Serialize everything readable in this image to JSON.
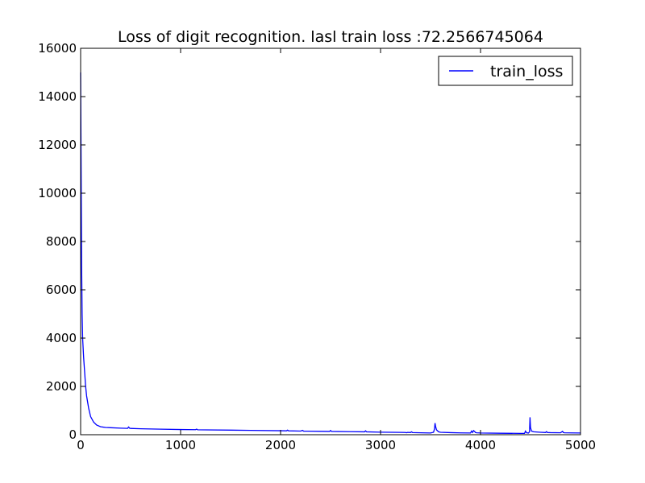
{
  "chart_data": {
    "type": "line",
    "title": "Loss of digit recognition. lasl train loss :72.2566745064",
    "xlabel": "",
    "ylabel": "",
    "xlim": [
      0,
      5000
    ],
    "ylim": [
      0,
      16000
    ],
    "x_ticks": [
      0,
      1000,
      2000,
      3000,
      4000,
      5000
    ],
    "y_ticks": [
      0,
      2000,
      4000,
      6000,
      8000,
      10000,
      12000,
      14000,
      16000
    ],
    "x_tick_labels": [
      "0",
      "1000",
      "2000",
      "3000",
      "4000",
      "5000"
    ],
    "y_tick_labels": [
      "0",
      "2000",
      "4000",
      "6000",
      "8000",
      "10000",
      "12000",
      "14000",
      "16000"
    ],
    "grid": false,
    "legend_position": "top-right",
    "series": [
      {
        "name": "train_loss",
        "color": "#0000ff",
        "x": [
          0,
          5,
          10,
          15,
          20,
          30,
          40,
          50,
          60,
          80,
          100,
          130,
          160,
          200,
          250,
          300,
          400,
          470,
          480,
          490,
          500,
          600,
          800,
          1000,
          1150,
          1160,
          1170,
          1250,
          1500,
          1700,
          2000,
          2060,
          2070,
          2080,
          2200,
          2220,
          2230,
          2400,
          2490,
          2500,
          2510,
          2700,
          2840,
          2850,
          2860,
          3000,
          3200,
          3250,
          3260,
          3270,
          3300,
          3310,
          3320,
          3400,
          3500,
          3530,
          3540,
          3545,
          3550,
          3560,
          3580,
          3600,
          3700,
          3800,
          3900,
          3910,
          3920,
          3930,
          3940,
          3950,
          3960,
          4000,
          4200,
          4400,
          4440,
          4450,
          4460,
          4480,
          4490,
          4495,
          4500,
          4510,
          4530,
          4600,
          4650,
          4660,
          4670,
          4700,
          4800,
          4820,
          4830,
          4840,
          4900,
          5000
        ],
        "y": [
          15000,
          11000,
          7000,
          5000,
          4000,
          3200,
          2600,
          2000,
          1600,
          1100,
          750,
          520,
          400,
          330,
          300,
          290,
          270,
          262,
          320,
          270,
          260,
          245,
          230,
          215,
          208,
          230,
          205,
          200,
          190,
          180,
          165,
          160,
          190,
          160,
          150,
          180,
          148,
          140,
          136,
          175,
          135,
          125,
          118,
          160,
          118,
          105,
          95,
          92,
          80,
          95,
          90,
          120,
          88,
          80,
          70,
          100,
          250,
          480,
          350,
          200,
          120,
          100,
          85,
          75,
          70,
          150,
          90,
          170,
          140,
          90,
          80,
          70,
          60,
          55,
          55,
          150,
          80,
          70,
          120,
          720,
          300,
          150,
          120,
          100,
          90,
          130,
          90,
          85,
          80,
          140,
          85,
          80,
          75,
          72
        ]
      }
    ]
  }
}
